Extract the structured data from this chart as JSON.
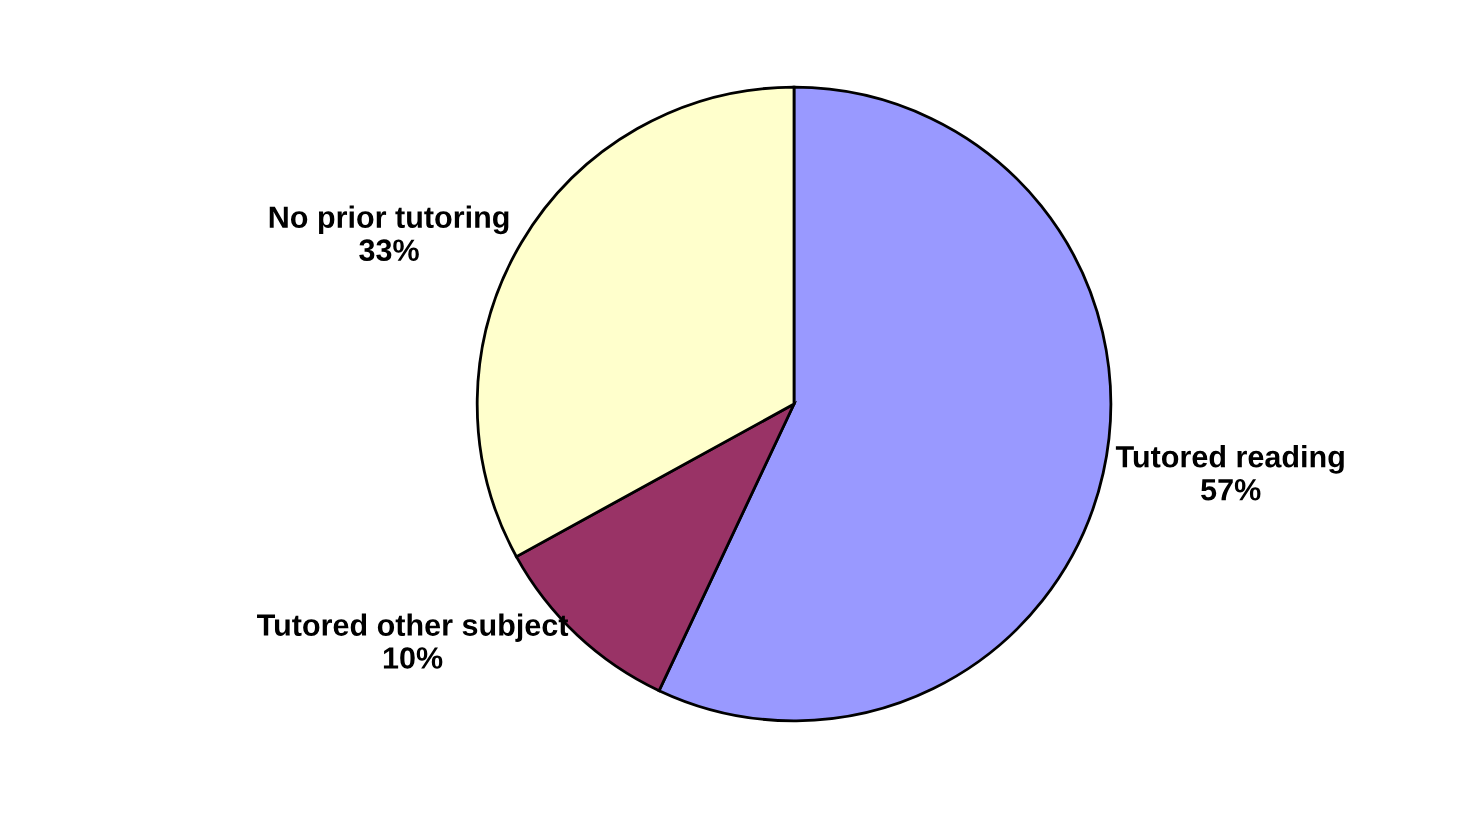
{
  "chart_data": {
    "type": "pie",
    "categories": [
      "Tutored reading",
      "Tutored other subject",
      "No prior tutoring"
    ],
    "values": [
      57,
      10,
      33
    ],
    "value_labels": [
      "57%",
      "10%",
      "33%"
    ],
    "colors": [
      "#9999ff",
      "#993366",
      "#ffffcc"
    ],
    "legend": false
  }
}
